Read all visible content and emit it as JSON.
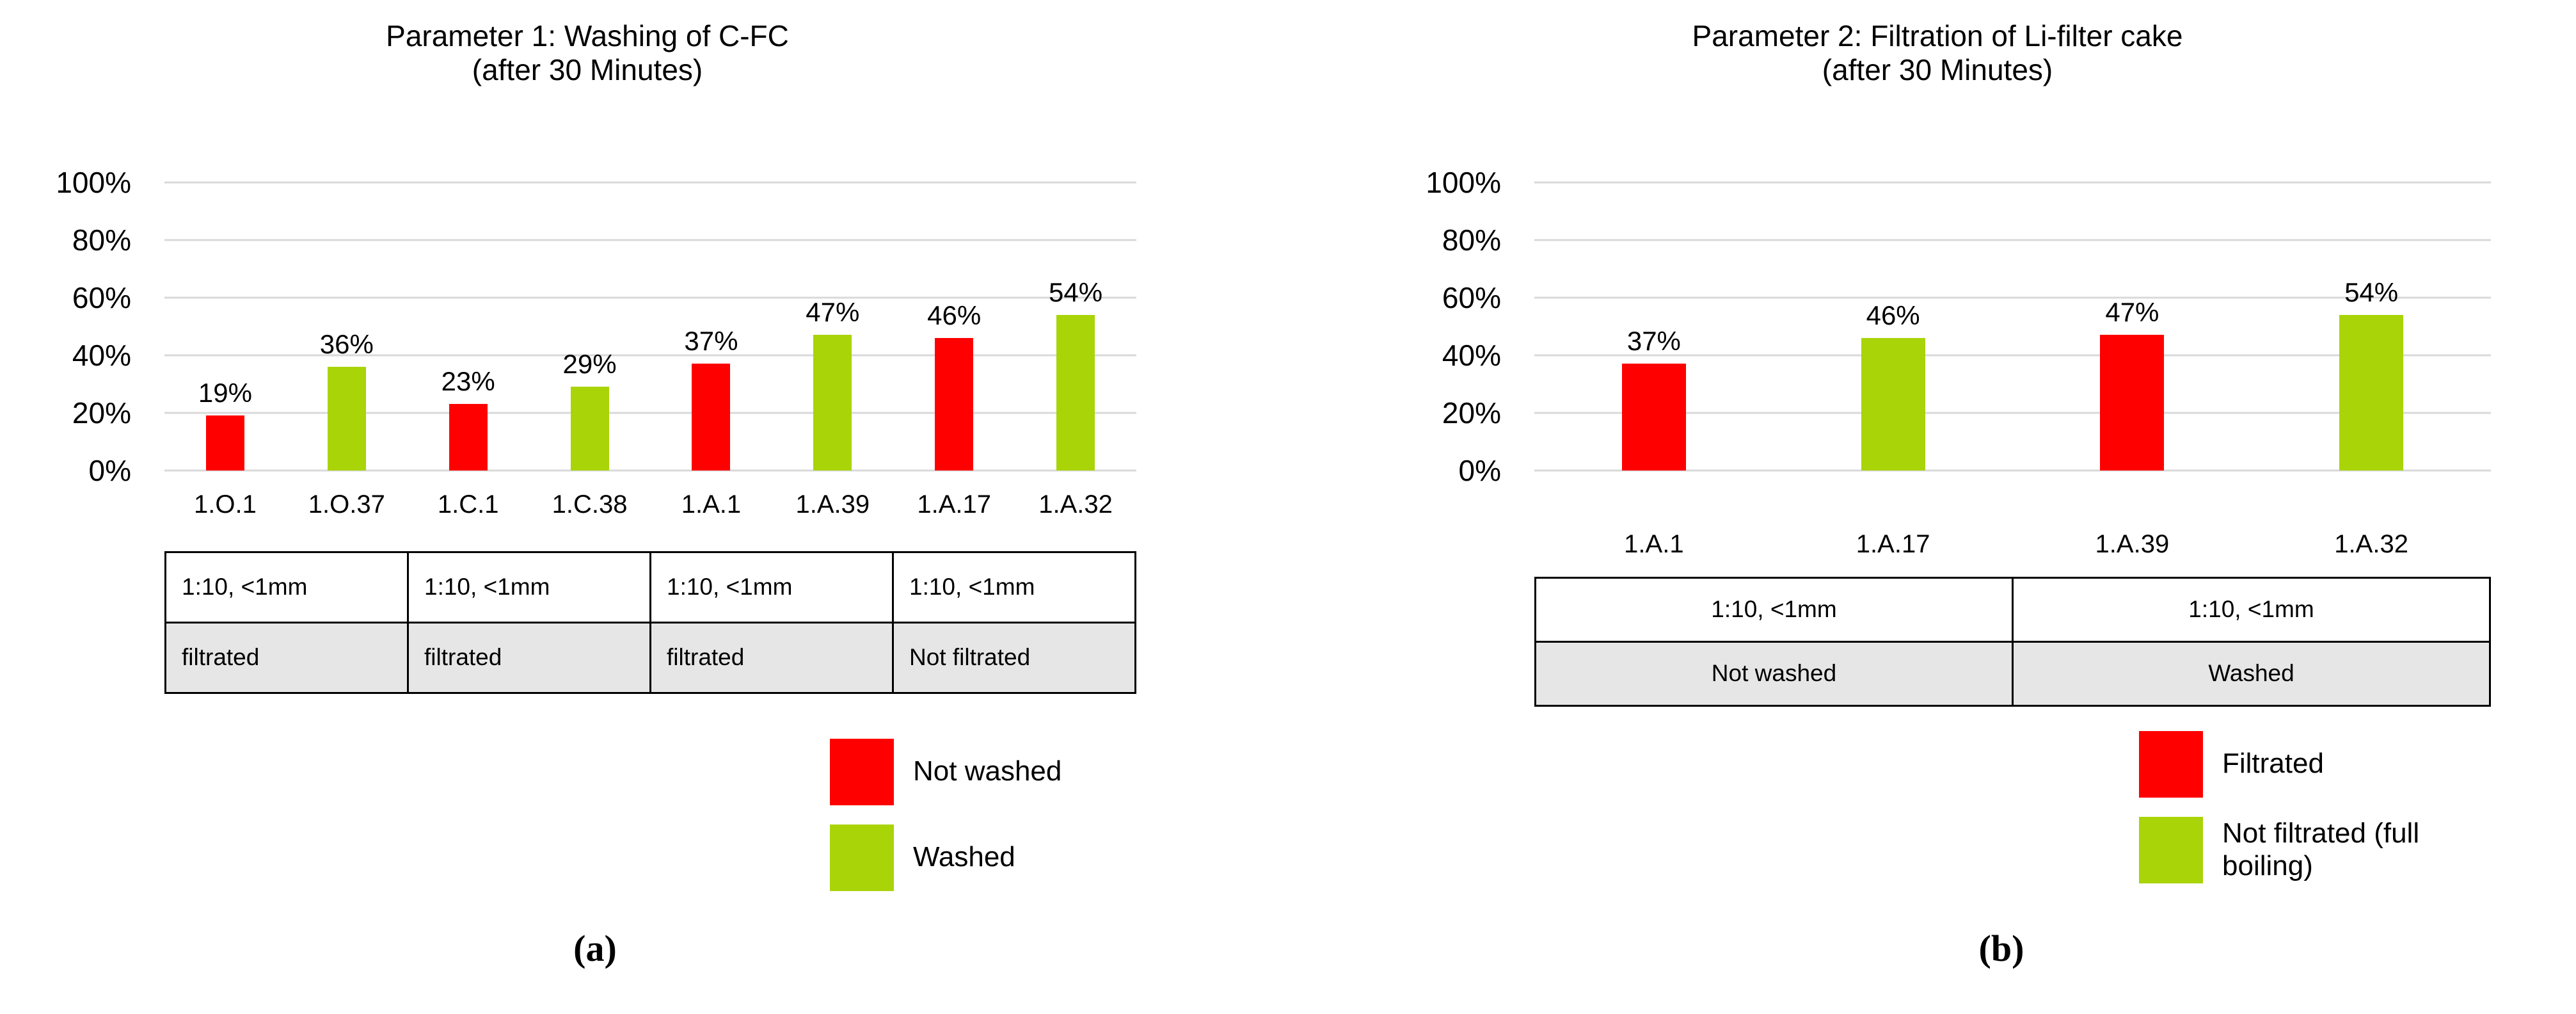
{
  "styles": {
    "red": "#FF0000",
    "green": "#A9D408",
    "gridline_color": "#D9D9D9",
    "table_shaded_bg": "#E7E6E6",
    "text_color": "#000000"
  },
  "chart_data": [
    {
      "type": "bar",
      "title": "Parameter 1: Washing of C-FC",
      "subtitle": "(after 30 Minutes)",
      "categories": [
        "1.O.1",
        "1.O.37",
        "1.C.1",
        "1.C.38",
        "1.A.1",
        "1.A.39",
        "1.A.17",
        "1.A.32"
      ],
      "values": [
        19,
        36,
        23,
        29,
        37,
        47,
        46,
        54
      ],
      "value_labels": [
        "19%",
        "36%",
        "23%",
        "29%",
        "37%",
        "47%",
        "46%",
        "54%"
      ],
      "bar_colors": [
        "#FF0000",
        "#A9D408",
        "#FF0000",
        "#A9D408",
        "#FF0000",
        "#A9D408",
        "#FF0000",
        "#A9D408"
      ],
      "ylim": [
        0,
        100
      ],
      "grid": true,
      "y_ticks": [
        {
          "value": 0,
          "label": "0%"
        },
        {
          "value": 20,
          "label": "20%"
        },
        {
          "value": 40,
          "label": "40%"
        },
        {
          "value": 60,
          "label": "60%"
        },
        {
          "value": 80,
          "label": "80%"
        },
        {
          "value": 100,
          "label": "100%"
        }
      ],
      "condition_table": {
        "align": "left",
        "rows": [
          [
            "1:10, <1mm",
            "1:10, <1mm",
            "1:10, <1mm",
            "1:10, <1mm"
          ],
          [
            "filtrated",
            "filtrated",
            "filtrated",
            "Not filtrated"
          ]
        ]
      },
      "legend_position": "bottom-right",
      "legend": [
        {
          "label": "Not washed",
          "color": "#FF0000"
        },
        {
          "label": "Washed",
          "color": "#A9D408"
        }
      ],
      "caption": "(a)"
    },
    {
      "type": "bar",
      "title": "Parameter 2: Filtration of Li-filter cake",
      "subtitle": "(after 30 Minutes)",
      "categories": [
        "1.A.1",
        "1.A.17",
        "1.A.39",
        "1.A.32"
      ],
      "values": [
        37,
        46,
        47,
        54
      ],
      "value_labels": [
        "37%",
        "46%",
        "47%",
        "54%"
      ],
      "bar_colors": [
        "#FF0000",
        "#A9D408",
        "#FF0000",
        "#A9D408"
      ],
      "ylim": [
        0,
        100
      ],
      "grid": true,
      "y_ticks": [
        {
          "value": 0,
          "label": "0%"
        },
        {
          "value": 20,
          "label": "20%"
        },
        {
          "value": 40,
          "label": "40%"
        },
        {
          "value": 60,
          "label": "60%"
        },
        {
          "value": 80,
          "label": "80%"
        },
        {
          "value": 100,
          "label": "100%"
        }
      ],
      "condition_table": {
        "align": "center",
        "rows": [
          [
            "1:10, <1mm",
            "1:10, <1mm"
          ],
          [
            "Not washed",
            "Washed"
          ]
        ]
      },
      "legend_position": "bottom-right",
      "legend": [
        {
          "label": "Filtrated",
          "color": "#FF0000"
        },
        {
          "label": "Not filtrated (full boiling)",
          "color": "#A9D408"
        }
      ],
      "caption": "(b)"
    }
  ]
}
